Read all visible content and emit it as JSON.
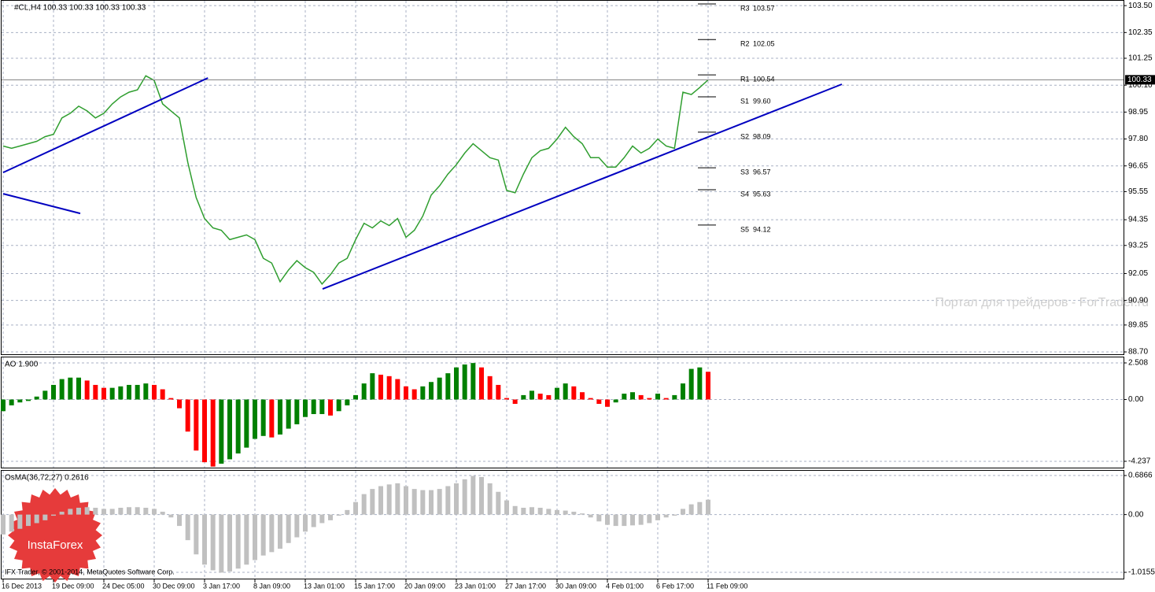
{
  "chart_data": [
    {
      "type": "line",
      "title": "#CL,H4  100.33 100.33 100.33 100.33",
      "color": "#2f9e2f",
      "categories": [
        "16 Dec 2013",
        null,
        null,
        null,
        null,
        null,
        "19 Dec 09:00",
        null,
        null,
        null,
        null,
        null,
        "24 Dec 05:00",
        null,
        null,
        null,
        null,
        null,
        "30 Dec 09:00",
        null,
        null,
        null,
        null,
        null,
        "3 Jan 17:00",
        null,
        null,
        null,
        null,
        null,
        "8 Jan 09:00",
        null,
        null,
        null,
        null,
        null,
        "13 Jan 01:00",
        null,
        null,
        null,
        null,
        null,
        "15 Jan 17:00",
        null,
        null,
        null,
        null,
        null,
        "20 Jan 09:00",
        null,
        null,
        null,
        null,
        null,
        "23 Jan 01:00",
        null,
        null,
        null,
        null,
        null,
        "27 Jan 17:00",
        null,
        null,
        null,
        null,
        null,
        "30 Jan 09:00",
        null,
        null,
        null,
        null,
        null,
        "4 Feb 01:00",
        null,
        null,
        null,
        null,
        null,
        "6 Feb 17:00",
        null,
        null,
        null,
        null,
        null,
        "11 Feb 09:00"
      ],
      "values": [
        97.5,
        97.4,
        97.5,
        97.6,
        97.7,
        97.9,
        98.0,
        98.7,
        98.9,
        99.2,
        99.0,
        98.7,
        98.9,
        99.3,
        99.6,
        99.8,
        99.9,
        100.5,
        100.3,
        99.3,
        99.0,
        98.7,
        96.8,
        95.3,
        94.4,
        94.0,
        93.9,
        93.5,
        93.6,
        93.7,
        93.5,
        92.7,
        92.5,
        91.7,
        92.2,
        92.6,
        92.3,
        92.1,
        91.6,
        92.0,
        92.5,
        92.7,
        93.5,
        94.2,
        94.0,
        94.3,
        94.1,
        94.4,
        93.6,
        93.9,
        94.5,
        95.4,
        95.8,
        96.3,
        96.7,
        97.2,
        97.6,
        97.3,
        97.0,
        96.9,
        95.6,
        95.5,
        96.3,
        97.0,
        97.3,
        97.4,
        97.8,
        98.3,
        97.9,
        97.6,
        97.0,
        97.0,
        96.6,
        96.6,
        97.0,
        97.5,
        97.2,
        97.4,
        97.8,
        97.5,
        97.4,
        99.8,
        99.7,
        100.0,
        100.33
      ],
      "ylim": [
        88.6,
        103.74
      ],
      "yticks": [
        {
          "value": 103.5,
          "label": "103.50"
        },
        102.35,
        101.25,
        {
          "value": 100.1,
          "label": "100.10"
        },
        98.95,
        {
          "value": 97.8,
          "label": "97.80"
        },
        96.65,
        95.55,
        94.35,
        93.25,
        92.05,
        {
          "value": 90.9,
          "label": "90.90"
        },
        89.85,
        {
          "value": 88.7,
          "label": "88.70"
        }
      ],
      "grid": true,
      "current_price": 100.33,
      "levels": [
        {
          "name": "R3",
          "value": 103.57
        },
        {
          "name": "R2",
          "value": 102.05
        },
        {
          "name": "R1",
          "value": 100.54
        },
        {
          "name": "S1",
          "value": {
            "value": 99.6,
            "label": "99.60"
          }
        },
        {
          "name": "S2",
          "value": 98.09
        },
        {
          "name": "S3",
          "value": 96.57
        },
        {
          "name": "S4",
          "value": 95.63
        },
        {
          "name": "S5",
          "value": 94.12
        }
      ],
      "trendline_color": "#0000c0",
      "trendlines": [
        {
          "x": [
            0,
            24.4
          ],
          "y": [
            96.37,
            100.41
          ]
        },
        {
          "x": [
            0,
            9.19
          ],
          "y": [
            95.46,
            94.62
          ]
        },
        {
          "x": [
            38.06,
            99.94
          ],
          "y": [
            91.39,
            100.14
          ]
        }
      ]
    },
    {
      "type": "bar",
      "title": "AO 1.900",
      "up_color": "#008000",
      "down_color": "#ff0000",
      "values": [
        -0.8,
        -0.4,
        -0.2,
        -0.1,
        0.2,
        0.6,
        1.0,
        1.4,
        1.5,
        1.5,
        1.3,
        1.0,
        0.8,
        0.8,
        0.9,
        1.0,
        1.0,
        1.1,
        1.0,
        0.7,
        0.1,
        -0.6,
        -2.2,
        -3.5,
        -4.3,
        -4.6,
        -4.4,
        -4.1,
        -3.7,
        -3.3,
        -2.7,
        -2.5,
        -2.6,
        -2.4,
        -2.0,
        -1.7,
        -1.2,
        -1.0,
        -1.0,
        -1.1,
        -0.8,
        -0.4,
        0.3,
        1.1,
        1.8,
        1.7,
        1.6,
        1.4,
        0.9,
        0.7,
        0.9,
        1.2,
        1.5,
        1.8,
        2.2,
        2.4,
        2.5,
        2.2,
        1.6,
        1.0,
        0.1,
        -0.3,
        0.3,
        0.6,
        0.4,
        0.3,
        0.8,
        1.1,
        0.9,
        0.5,
        0.1,
        -0.3,
        -0.5,
        -0.2,
        0.4,
        0.5,
        0.3,
        0.1,
        0.4,
        0.1,
        0.3,
        1.1,
        2.1,
        2.2,
        1.9
      ],
      "ylim": [
        -4.67,
        2.94
      ],
      "yticks": [
        2.508,
        {
          "value": 0,
          "label": "0.00"
        },
        -4.237
      ],
      "grid": true
    },
    {
      "type": "bar",
      "title": "OsMA(36,72,27) 0.2616",
      "color": "#c0c0c0",
      "values": [
        -0.35,
        -0.3,
        -0.25,
        -0.2,
        -0.15,
        -0.1,
        -0.02,
        0.05,
        0.1,
        0.12,
        0.13,
        0.12,
        0.1,
        0.1,
        0.12,
        0.13,
        0.13,
        0.12,
        0.1,
        0.05,
        -0.05,
        -0.2,
        -0.45,
        -0.7,
        -0.88,
        -0.98,
        -1.02,
        -1.0,
        -0.95,
        -0.88,
        -0.8,
        -0.72,
        -0.66,
        -0.6,
        -0.5,
        -0.4,
        -0.3,
        -0.22,
        -0.15,
        -0.1,
        -0.02,
        0.08,
        0.22,
        0.36,
        0.45,
        0.5,
        0.53,
        0.55,
        0.5,
        0.45,
        0.43,
        0.43,
        0.45,
        0.5,
        0.55,
        0.62,
        0.68,
        0.66,
        0.55,
        0.4,
        0.25,
        0.15,
        0.12,
        0.13,
        0.12,
        0.1,
        0.08,
        0.07,
        0.05,
        0.02,
        -0.05,
        -0.12,
        -0.18,
        -0.2,
        -0.2,
        -0.19,
        -0.18,
        -0.15,
        -0.1,
        -0.05,
        -0.02,
        0.1,
        0.18,
        0.22,
        0.2616
      ],
      "ylim": [
        -1.126,
        0.784
      ],
      "yticks": [
        0.6866,
        {
          "value": 0,
          "label": "0.00"
        },
        -1.0155
      ],
      "grid": true
    }
  ],
  "watermark": "Портал для трейдеров - ForTrader.ru",
  "copyright": "IFX Trader, © 2001-2014, MetaQuotes Software Corp.",
  "logo_text": "InstaForex"
}
